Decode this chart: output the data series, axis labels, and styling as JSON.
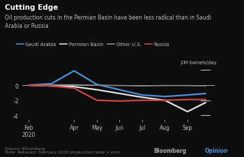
{
  "title": "Cutting Edge",
  "subtitle": "Oil production cuts in the Permian Basin have been less radical than in Saudi\nArabia or Russia",
  "ylabel_annotation": "2M barrels/day",
  "source": "Source: Bloomberg",
  "note": "Note: Rebased. February 2020 production rates = zero.",
  "background_color": "#0d0d0d",
  "text_color": "#bbbbbb",
  "x_labels": [
    "Feb\n2020",
    "Apr",
    "May",
    "Jun",
    "Jul",
    "Aug",
    "Sep"
  ],
  "x_positions": [
    0,
    2,
    3,
    4,
    5,
    6,
    7
  ],
  "series": {
    "Saudi Arabia": {
      "color": "#4a90d9",
      "data_x": [
        0,
        1,
        2,
        3,
        4,
        5,
        6,
        7,
        7.8
      ],
      "data_y": [
        0.0,
        0.2,
        1.9,
        0.1,
        -0.6,
        -1.3,
        -1.5,
        -1.3,
        -1.1
      ]
    },
    "Permian Basin": {
      "color": "#e0e0e0",
      "data_x": [
        0,
        1,
        2,
        3,
        4,
        5,
        6,
        7,
        7.8
      ],
      "data_y": [
        0.0,
        -0.1,
        -0.2,
        -0.6,
        -1.1,
        -1.6,
        -2.0,
        -3.5,
        -2.3
      ]
    },
    "Other U.S.": {
      "color": "#888888",
      "data_x": [
        0,
        1,
        2,
        3,
        4,
        5,
        6,
        7,
        7.8
      ],
      "data_y": [
        0.0,
        0.05,
        0.05,
        0.0,
        -0.05,
        -0.1,
        -0.05,
        -0.05,
        -0.1
      ]
    },
    "Russia": {
      "color": "#cc4444",
      "data_x": [
        0,
        1,
        2,
        3,
        4,
        5,
        6,
        7,
        7.8
      ],
      "data_y": [
        0.0,
        -0.1,
        -0.4,
        -2.0,
        -2.1,
        -2.0,
        -2.0,
        -1.9,
        -1.9
      ]
    }
  },
  "ylim": [
    -4.5,
    2.6
  ],
  "yticks": [
    2,
    0,
    -2,
    -4
  ],
  "xlim": [
    -0.3,
    8.2
  ]
}
